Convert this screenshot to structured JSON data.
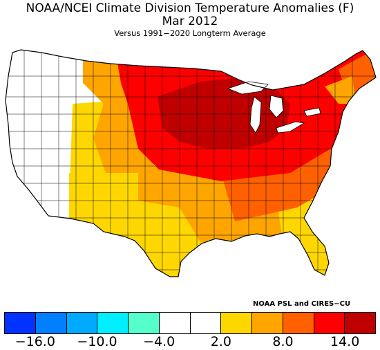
{
  "title": "NOAA/NCEI Climate Division Temperature Anomalies (F)",
  "subtitle": "Mar 2012",
  "note": "Versus 1991−2020 Longterm Average",
  "credit": "NOAA PSL and CIRES−CU",
  "legend": {
    "colors": [
      "#0033ff",
      "#0080ff",
      "#00aaff",
      "#00eeff",
      "#55ffcc",
      "#ffffff",
      "#ffffff",
      "#ffd700",
      "#ffa500",
      "#ff6000",
      "#ff0000",
      "#c00000"
    ],
    "ticks": [
      "−16.0",
      "−10.0",
      "−4.0",
      "2.0",
      "8.0",
      "14.0"
    ]
  },
  "map_legend": {
    "bins_F": [
      "<-16",
      "-16 to -13",
      "-13 to -10",
      "-10 to -7",
      "-7 to -4",
      "-4 to -1",
      "-1 to 2",
      "2 to 5",
      "5 to 8",
      "8 to 11",
      "11 to 14",
      ">14"
    ]
  }
}
